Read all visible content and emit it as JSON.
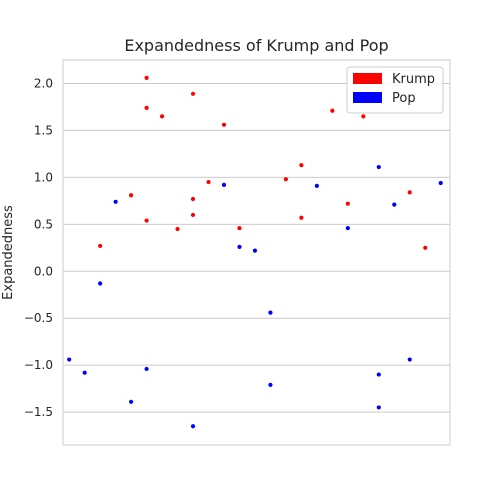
{
  "chart_data": {
    "type": "scatter",
    "title": "Expandedness of Krump and Pop",
    "xlabel": "",
    "ylabel": "Expandedness",
    "xlim": [
      0,
      25
    ],
    "ylim": [
      -1.85,
      2.25
    ],
    "yticks": [
      -1.5,
      -1.0,
      -0.5,
      0.0,
      0.5,
      1.0,
      1.5,
      2.0
    ],
    "ytick_labels": [
      "−1.5",
      "−1.0",
      "−0.5",
      "0.0",
      "0.5",
      "1.0",
      "1.5",
      "2.0"
    ],
    "grid": true,
    "legend_position": "top-right",
    "series": [
      {
        "name": "Krump",
        "color": "#ff0000",
        "points": [
          [
            2.4,
            0.27
          ],
          [
            4.4,
            0.81
          ],
          [
            5.4,
            2.06
          ],
          [
            5.4,
            1.74
          ],
          [
            5.4,
            0.54
          ],
          [
            6.4,
            1.65
          ],
          [
            7.4,
            0.45
          ],
          [
            8.4,
            1.89
          ],
          [
            8.4,
            0.77
          ],
          [
            8.4,
            0.6
          ],
          [
            9.4,
            0.95
          ],
          [
            10.4,
            1.56
          ],
          [
            11.4,
            0.46
          ],
          [
            14.4,
            0.98
          ],
          [
            15.4,
            1.13
          ],
          [
            15.4,
            0.57
          ],
          [
            17.4,
            1.71
          ],
          [
            18.4,
            0.72
          ],
          [
            19.4,
            1.65
          ],
          [
            22.4,
            0.84
          ],
          [
            23.4,
            0.25
          ]
        ]
      },
      {
        "name": "Pop",
        "color": "#0000ff",
        "points": [
          [
            0.4,
            -0.94
          ],
          [
            1.4,
            -1.08
          ],
          [
            2.4,
            -0.13
          ],
          [
            3.4,
            0.74
          ],
          [
            4.4,
            -1.39
          ],
          [
            5.4,
            -1.04
          ],
          [
            8.4,
            -1.65
          ],
          [
            10.4,
            0.92
          ],
          [
            11.4,
            0.26
          ],
          [
            12.4,
            0.22
          ],
          [
            13.4,
            -0.44
          ],
          [
            13.4,
            -1.21
          ],
          [
            16.4,
            0.91
          ],
          [
            18.4,
            0.46
          ],
          [
            20.4,
            1.11
          ],
          [
            20.4,
            -1.1
          ],
          [
            20.4,
            -1.45
          ],
          [
            21.4,
            0.71
          ],
          [
            22.4,
            -0.94
          ],
          [
            24.4,
            0.94
          ]
        ]
      }
    ]
  }
}
